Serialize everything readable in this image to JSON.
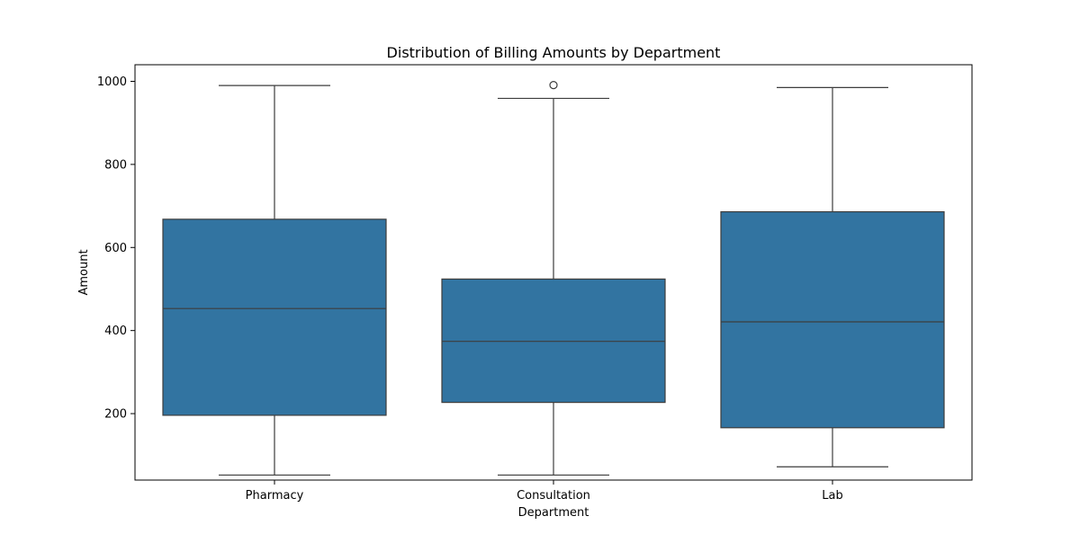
{
  "chart_data": {
    "type": "box",
    "title": "Distribution of Billing Amounts by Department",
    "xlabel": "Department",
    "ylabel": "Amount",
    "ylim": [
      40,
      1040
    ],
    "yticks": [
      200,
      400,
      600,
      800,
      1000
    ],
    "grid": false,
    "legend": "none",
    "box_color": "#3274a1",
    "line_color": "#3d3d3d",
    "categories": [
      "Pharmacy",
      "Consultation",
      "Lab"
    ],
    "boxes": [
      {
        "category": "Pharmacy",
        "whisker_low": 52,
        "q1": 196,
        "median": 453,
        "q3": 668,
        "whisker_high": 990,
        "outliers": []
      },
      {
        "category": "Consultation",
        "whisker_low": 52,
        "q1": 227,
        "median": 374,
        "q3": 524,
        "whisker_high": 959,
        "outliers": [
          991
        ]
      },
      {
        "category": "Lab",
        "whisker_low": 72,
        "q1": 166,
        "median": 421,
        "q3": 686,
        "whisker_high": 985,
        "outliers": []
      }
    ]
  }
}
